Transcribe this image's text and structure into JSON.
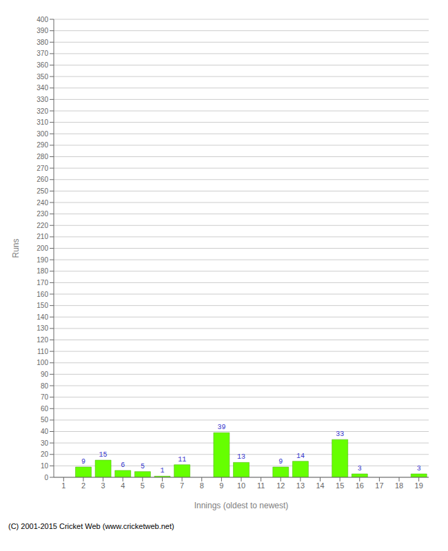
{
  "chart_data": {
    "type": "bar",
    "xlabel": "Innings (oldest to newest)",
    "ylabel": "Runs",
    "categories": [
      1,
      2,
      3,
      4,
      5,
      6,
      7,
      8,
      9,
      10,
      11,
      12,
      13,
      14,
      15,
      16,
      17,
      18,
      19
    ],
    "values": [
      0,
      9,
      15,
      6,
      5,
      1,
      11,
      0,
      39,
      13,
      0,
      9,
      14,
      0,
      33,
      3,
      0,
      0,
      3
    ],
    "color": "#66ff00",
    "ylim": [
      0,
      400
    ],
    "yticks": [
      0,
      10,
      20,
      30,
      40,
      50,
      60,
      70,
      80,
      90,
      100,
      110,
      120,
      130,
      140,
      150,
      160,
      170,
      180,
      190,
      200,
      210,
      220,
      230,
      240,
      250,
      260,
      270,
      280,
      290,
      300,
      310,
      320,
      330,
      340,
      350,
      360,
      370,
      380,
      390,
      400
    ],
    "grid": true,
    "data_labels": true,
    "annotations": [
      "(C) 2001-2015 Cricket Web (www.cricketweb.net)"
    ]
  }
}
